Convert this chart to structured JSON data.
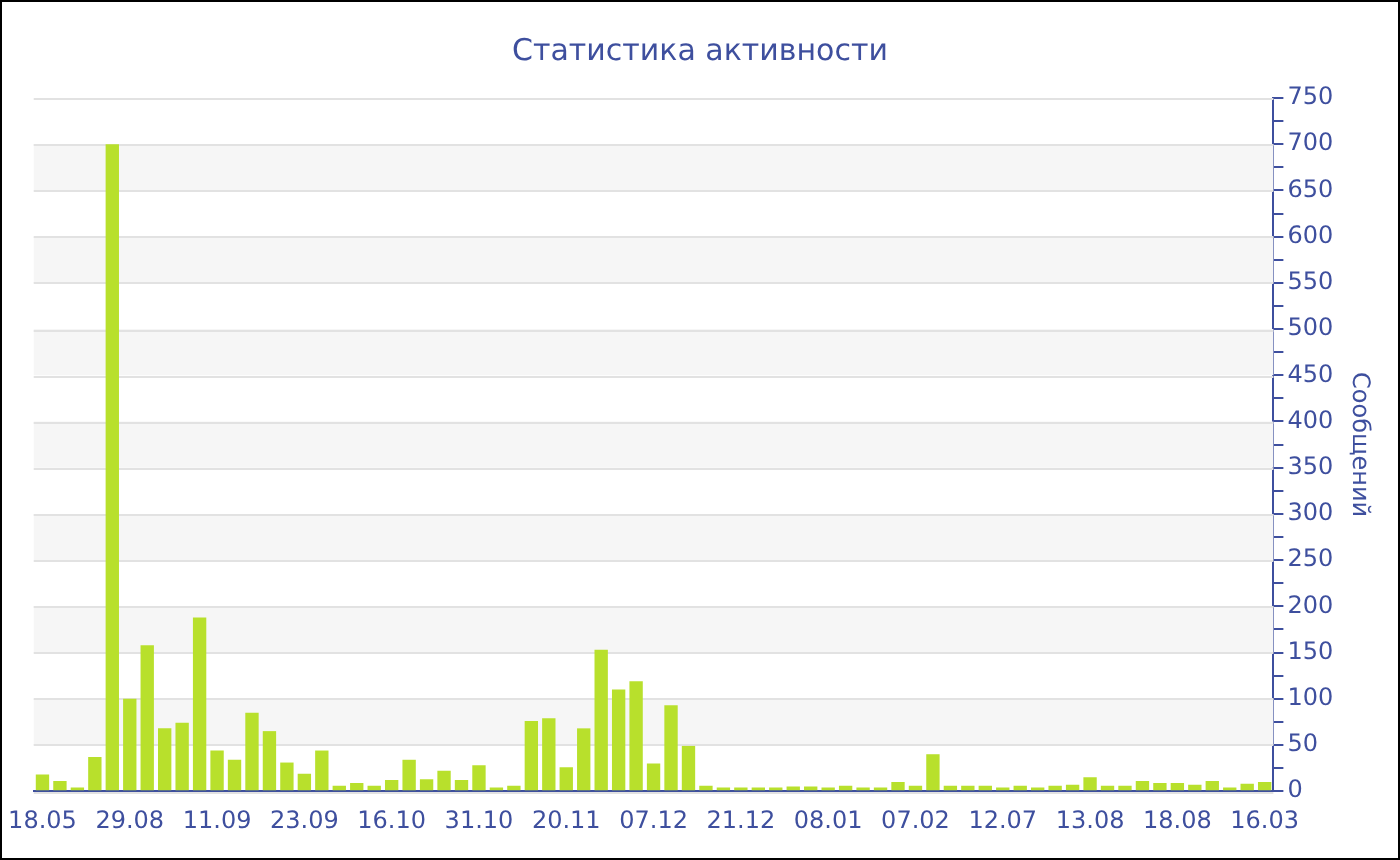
{
  "chart_data": {
    "type": "bar",
    "title": "Статистика активности",
    "ylabel": "Сообщений",
    "categories": [
      "18.05",
      null,
      null,
      null,
      null,
      "29.08",
      null,
      null,
      null,
      null,
      "11.09",
      null,
      null,
      null,
      null,
      "23.09",
      null,
      null,
      null,
      null,
      "16.10",
      null,
      null,
      null,
      null,
      "31.10",
      null,
      null,
      null,
      null,
      "20.11",
      null,
      null,
      null,
      null,
      "07.12",
      null,
      null,
      null,
      null,
      "21.12",
      null,
      null,
      null,
      null,
      "08.01",
      null,
      null,
      null,
      null,
      "07.02",
      null,
      null,
      null,
      null,
      "12.07",
      null,
      null,
      null,
      null,
      "13.08",
      null,
      null,
      null,
      null,
      "18.08",
      null,
      null,
      null,
      null,
      "16.03"
    ],
    "values": [
      18,
      11,
      4,
      37,
      700,
      100,
      158,
      68,
      74,
      188,
      44,
      34,
      85,
      65,
      31,
      19,
      44,
      6,
      9,
      6,
      12,
      34,
      13,
      22,
      12,
      28,
      4,
      6,
      76,
      79,
      26,
      68,
      153,
      110,
      119,
      30,
      93,
      49,
      6,
      4,
      4,
      4,
      4,
      5,
      5,
      4,
      6,
      4,
      4,
      10,
      6,
      40,
      6,
      6,
      6,
      4,
      6,
      4,
      6,
      7,
      15,
      6,
      6,
      11,
      9,
      9,
      7,
      11,
      4,
      8,
      10
    ],
    "color": "#b8e02c",
    "ylim": [
      0,
      750
    ],
    "yticks": [
      0,
      {
        "value": 25,
        "label": null
      },
      50,
      {
        "value": 75,
        "label": null
      },
      100,
      {
        "value": 125,
        "label": null
      },
      150,
      {
        "value": 175,
        "label": null
      },
      200,
      {
        "value": 225,
        "label": null
      },
      250,
      {
        "value": 275,
        "label": null
      },
      300,
      {
        "value": 325,
        "label": null
      },
      350,
      {
        "value": 375,
        "label": null
      },
      400,
      {
        "value": 425,
        "label": null
      },
      450,
      {
        "value": 475,
        "label": null
      },
      500,
      {
        "value": 525,
        "label": null
      },
      550,
      {
        "value": 575,
        "label": null
      },
      600,
      {
        "value": 625,
        "label": null
      },
      650,
      {
        "value": 675,
        "label": null
      },
      700,
      {
        "value": 725,
        "label": null
      },
      750
    ],
    "grid": "y",
    "legend": false
  }
}
